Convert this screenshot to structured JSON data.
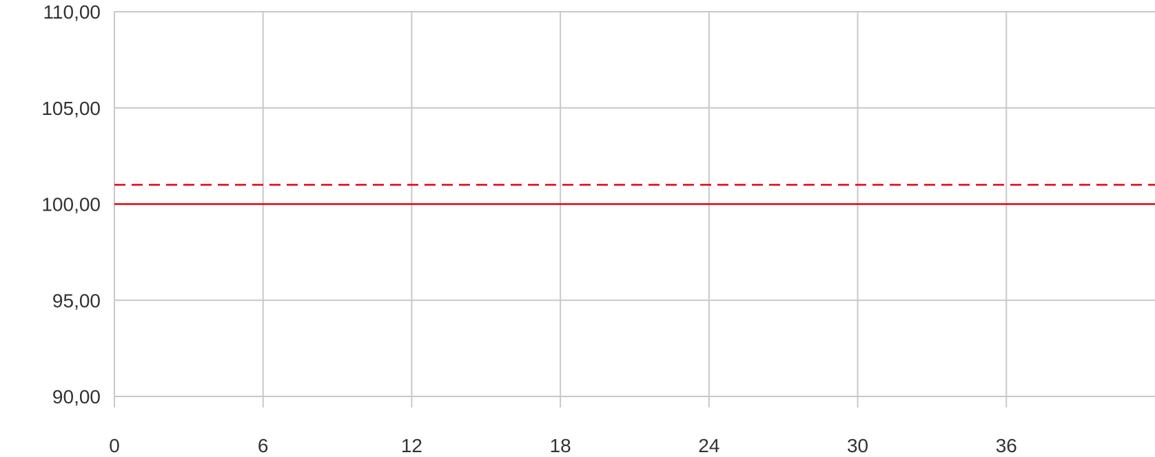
{
  "chart_data": {
    "type": "line",
    "title": "",
    "xlabel": "",
    "ylabel": "",
    "xlim": [
      0,
      42
    ],
    "ylim": [
      90,
      110
    ],
    "x_ticks": [
      0,
      6,
      12,
      18,
      24,
      30,
      36
    ],
    "x_tick_labels": [
      "0",
      "6",
      "12",
      "18",
      "24",
      "30",
      "36"
    ],
    "y_ticks": [
      90,
      95,
      100,
      105,
      110
    ],
    "y_tick_labels": [
      "90,00",
      "95,00",
      "100,00",
      "105,00",
      "110,00"
    ],
    "grid": true,
    "series": [
      {
        "style": "solid",
        "color": "#e3000f",
        "x": [
          0,
          42
        ],
        "y": [
          100,
          100
        ]
      },
      {
        "style": "dashed",
        "color": "#e3000f",
        "x": [
          0,
          42
        ],
        "y": [
          101,
          101
        ]
      }
    ],
    "grid_color": "#c8c8c8"
  }
}
